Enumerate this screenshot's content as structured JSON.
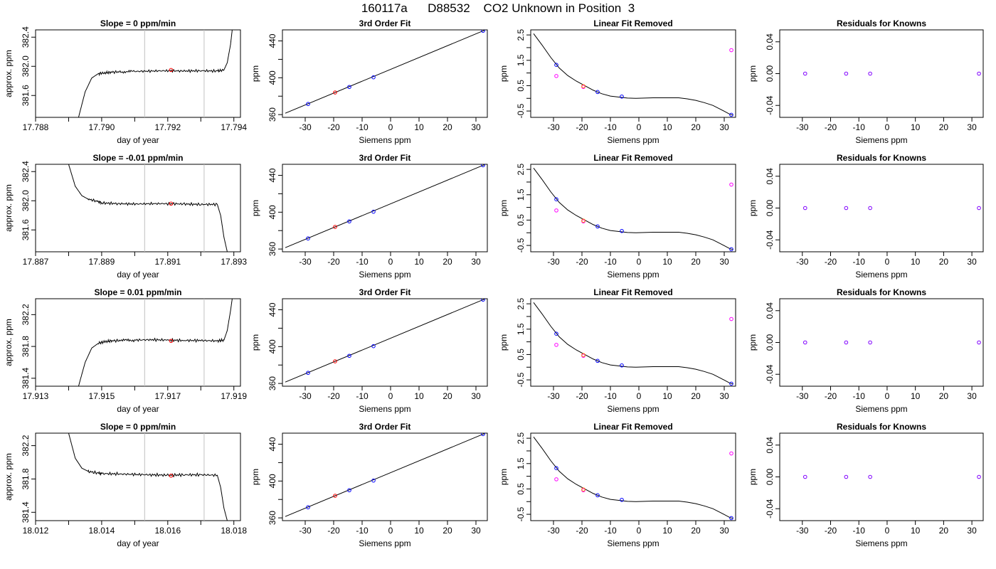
{
  "page": {
    "title": "160117a      D88532    CO2 Unknown in Position  3"
  },
  "chart_data": [
    {
      "type": "line",
      "row": 0,
      "title": "Slope =  0  ppm/min",
      "xlabel": "day of year",
      "ylabel": "approx. ppm",
      "xlim": [
        17.788,
        17.7942
      ],
      "ylim": [
        381.3,
        382.5
      ],
      "xticks": [
        "17.788",
        "17.790",
        "17.792",
        "17.794"
      ],
      "yticks": [
        "381.6",
        "382.0",
        "382.4"
      ],
      "vlines": [
        17.7913,
        17.7931
      ],
      "series": [
        {
          "x": [
            17.7893,
            17.7895,
            17.7897,
            17.7899,
            17.7901,
            17.7903,
            17.7906,
            17.791,
            17.7915,
            17.792,
            17.7925,
            17.793,
            17.7935,
            17.7937,
            17.7938,
            17.7939,
            17.79395
          ],
          "y": [
            381.3,
            381.65,
            381.84,
            381.9,
            381.91,
            381.92,
            381.925,
            381.93,
            381.935,
            381.94,
            381.935,
            381.94,
            381.935,
            381.95,
            382.05,
            382.3,
            382.5
          ]
        }
      ],
      "marker": {
        "x": 17.7921,
        "y": 381.95
      }
    },
    {
      "type": "line",
      "row": 1,
      "title": "Slope =  -0.01  ppm/min",
      "xlabel": "day of year",
      "ylabel": "approx. ppm",
      "xlim": [
        17.887,
        17.8932
      ],
      "ylim": [
        381.3,
        382.5
      ],
      "xticks": [
        "17.887",
        "17.889",
        "17.891",
        "17.893"
      ],
      "yticks": [
        "381.6",
        "382.0",
        "382.4"
      ],
      "vlines": [
        17.8903,
        17.8921
      ],
      "series": [
        {
          "x": [
            17.888,
            17.8881,
            17.8882,
            17.8884,
            17.8886,
            17.8889,
            17.889,
            17.8895,
            17.89,
            17.8905,
            17.891,
            17.8915,
            17.892,
            17.8925,
            17.8926,
            17.8927,
            17.8928
          ],
          "y": [
            382.5,
            382.35,
            382.2,
            382.07,
            382.02,
            381.99,
            381.97,
            381.96,
            381.955,
            381.96,
            381.96,
            381.955,
            381.95,
            381.95,
            381.8,
            381.5,
            381.3
          ]
        }
      ],
      "marker": {
        "x": 17.8911,
        "y": 381.96
      }
    },
    {
      "type": "line",
      "row": 2,
      "title": "Slope =  0.01  ppm/min",
      "xlabel": "day of year",
      "ylabel": "approx. ppm",
      "xlim": [
        17.913,
        17.9192
      ],
      "ylim": [
        381.3,
        382.4
      ],
      "xticks": [
        "17.913",
        "17.915",
        "17.917",
        "17.919"
      ],
      "yticks": [
        "381.4",
        "381.8",
        "382.2"
      ],
      "vlines": [
        17.9163,
        17.9181
      ],
      "series": [
        {
          "x": [
            17.9143,
            17.9145,
            17.9147,
            17.9149,
            17.9151,
            17.9153,
            17.9156,
            17.916,
            17.9165,
            17.917,
            17.9175,
            17.918,
            17.9185,
            17.9187,
            17.9188,
            17.9189,
            17.91895
          ],
          "y": [
            381.3,
            381.6,
            381.78,
            381.84,
            381.86,
            381.87,
            381.875,
            381.88,
            381.885,
            381.88,
            381.875,
            381.875,
            381.87,
            381.88,
            382.0,
            382.25,
            382.4
          ]
        }
      ],
      "marker": {
        "x": 17.9171,
        "y": 381.87
      }
    },
    {
      "type": "line",
      "row": 3,
      "title": "Slope =  0  ppm/min",
      "xlabel": "day of year",
      "ylabel": "approx. ppm",
      "xlim": [
        18.012,
        18.0182
      ],
      "ylim": [
        381.3,
        382.35
      ],
      "xticks": [
        "18.012",
        "18.014",
        "18.016",
        "18.018"
      ],
      "yticks": [
        "381.4",
        "381.8",
        "382.2"
      ],
      "vlines": [
        18.0153,
        18.0171
      ],
      "series": [
        {
          "x": [
            18.013,
            18.0131,
            18.0132,
            18.0134,
            18.0136,
            18.0139,
            18.014,
            18.0145,
            18.015,
            18.0155,
            18.016,
            18.0165,
            18.017,
            18.0175,
            18.0176,
            18.0177,
            18.0178
          ],
          "y": [
            382.35,
            382.2,
            382.05,
            381.93,
            381.89,
            381.87,
            381.865,
            381.86,
            381.855,
            381.85,
            381.845,
            381.85,
            381.85,
            381.845,
            381.7,
            381.45,
            381.3
          ]
        }
      ],
      "marker": {
        "x": 18.0161,
        "y": 381.84
      }
    },
    {
      "type": "scatter",
      "row": 0,
      "title": "3rd Order Fit",
      "xlabel": "Siemens ppm",
      "ylabel": "ppm",
      "xlim": [
        -38,
        34
      ],
      "ylim": [
        357,
        452
      ],
      "xticks": [
        "-30",
        "-20",
        "-10",
        "0",
        "10",
        "20",
        "30"
      ],
      "yticks": [
        "360",
        "400",
        "440"
      ],
      "fit": {
        "x": [
          -37,
          33
        ],
        "y": [
          361.5,
          451.5
        ]
      },
      "knowns": {
        "x": [
          -29,
          -14.5,
          -6,
          32.5
        ],
        "y": [
          371.5,
          390,
          400.5,
          451
        ]
      },
      "unknown": {
        "x": -19.5,
        "y": 384
      }
    },
    {
      "type": "scatter",
      "row": 1,
      "title": "3rd Order Fit",
      "xlabel": "Siemens ppm",
      "ylabel": "ppm",
      "xlim": [
        -38,
        34
      ],
      "ylim": [
        357,
        452
      ],
      "xticks": [
        "-30",
        "-20",
        "-10",
        "0",
        "10",
        "20",
        "30"
      ],
      "yticks": [
        "360",
        "400",
        "440"
      ],
      "fit": {
        "x": [
          -37,
          33
        ],
        "y": [
          361.5,
          451.5
        ]
      },
      "knowns": {
        "x": [
          -29,
          -14.5,
          -6,
          32.5
        ],
        "y": [
          371.5,
          390,
          400.5,
          451
        ]
      },
      "unknown": {
        "x": -19.5,
        "y": 384
      }
    },
    {
      "type": "scatter",
      "row": 2,
      "title": "3rd Order Fit",
      "xlabel": "Siemens ppm",
      "ylabel": "ppm",
      "xlim": [
        -38,
        34
      ],
      "ylim": [
        357,
        452
      ],
      "xticks": [
        "-30",
        "-20",
        "-10",
        "0",
        "10",
        "20",
        "30"
      ],
      "yticks": [
        "360",
        "400",
        "440"
      ],
      "fit": {
        "x": [
          -37,
          33
        ],
        "y": [
          361.5,
          451.5
        ]
      },
      "knowns": {
        "x": [
          -29,
          -14.5,
          -6,
          32.5
        ],
        "y": [
          371.5,
          390,
          400.5,
          451
        ]
      },
      "unknown": {
        "x": -19.5,
        "y": 384
      }
    },
    {
      "type": "scatter",
      "row": 3,
      "title": "3rd Order Fit",
      "xlabel": "Siemens ppm",
      "ylabel": "ppm",
      "xlim": [
        -38,
        34
      ],
      "ylim": [
        357,
        452
      ],
      "xticks": [
        "-30",
        "-20",
        "-10",
        "0",
        "10",
        "20",
        "30"
      ],
      "yticks": [
        "360",
        "400",
        "440"
      ],
      "fit": {
        "x": [
          -37,
          33
        ],
        "y": [
          361.5,
          451.5
        ]
      },
      "knowns": {
        "x": [
          -29,
          -14.5,
          -6,
          32.5
        ],
        "y": [
          371.5,
          390,
          400.5,
          451
        ]
      },
      "unknown": {
        "x": -19.5,
        "y": 384
      }
    },
    {
      "type": "scatter",
      "row": 0,
      "title": "Linear Fit Removed",
      "xlabel": "Siemens ppm",
      "ylabel": "ppm",
      "xlim": [
        -38,
        34
      ],
      "ylim": [
        -0.75,
        2.7
      ],
      "xticks": [
        "-30",
        "-20",
        "-10",
        "0",
        "10",
        "20",
        "30"
      ],
      "yticks": [
        "-0.5",
        "0.5",
        "1.5",
        "2.5"
      ],
      "curve": {
        "x": [
          -37,
          -34,
          -31,
          -28,
          -25,
          -22,
          -19,
          -16,
          -13,
          -10,
          -7,
          -4,
          -1,
          2,
          5,
          8,
          11,
          14,
          17,
          20,
          23,
          26,
          29,
          32,
          33
        ],
        "y": [
          2.55,
          2.1,
          1.62,
          1.2,
          0.9,
          0.68,
          0.5,
          0.32,
          0.18,
          0.09,
          0.05,
          0.01,
          0.0,
          0.01,
          0.02,
          0.02,
          0.02,
          0.02,
          -0.02,
          -0.08,
          -0.17,
          -0.28,
          -0.45,
          -0.63,
          -0.66
        ]
      },
      "knowns": {
        "x": [
          -29,
          -14.5,
          -6,
          32.5
        ],
        "y": [
          1.32,
          0.25,
          0.07,
          -0.65
        ]
      },
      "unknown": {
        "x": -19.5,
        "y": 0.48
      },
      "magenta": {
        "x": [
          -29,
          -19.5,
          32.5
        ],
        "y": [
          0.88,
          0.45,
          1.9
        ]
      }
    },
    {
      "type": "scatter",
      "row": 1,
      "title": "Linear Fit Removed",
      "xlabel": "Siemens ppm",
      "ylabel": "ppm",
      "xlim": [
        -38,
        34
      ],
      "ylim": [
        -0.75,
        2.7
      ],
      "xticks": [
        "-30",
        "-20",
        "-10",
        "0",
        "10",
        "20",
        "30"
      ],
      "yticks": [
        "-0.5",
        "0.5",
        "1.5",
        "2.5"
      ],
      "curve": {
        "x": [
          -37,
          -34,
          -31,
          -28,
          -25,
          -22,
          -19,
          -16,
          -13,
          -10,
          -7,
          -4,
          -1,
          2,
          5,
          8,
          11,
          14,
          17,
          20,
          23,
          26,
          29,
          32,
          33
        ],
        "y": [
          2.55,
          2.1,
          1.62,
          1.2,
          0.9,
          0.68,
          0.5,
          0.32,
          0.18,
          0.09,
          0.05,
          0.01,
          0.0,
          0.01,
          0.02,
          0.02,
          0.02,
          0.02,
          -0.02,
          -0.08,
          -0.17,
          -0.28,
          -0.45,
          -0.63,
          -0.66
        ]
      },
      "knowns": {
        "x": [
          -29,
          -14.5,
          -6,
          32.5
        ],
        "y": [
          1.32,
          0.25,
          0.07,
          -0.65
        ]
      },
      "unknown": {
        "x": -19.5,
        "y": 0.48
      },
      "magenta": {
        "x": [
          -29,
          -19.5,
          32.5
        ],
        "y": [
          0.88,
          0.45,
          1.9
        ]
      }
    },
    {
      "type": "scatter",
      "row": 2,
      "title": "Linear Fit Removed",
      "xlabel": "Siemens ppm",
      "ylabel": "ppm",
      "xlim": [
        -38,
        34
      ],
      "ylim": [
        -0.75,
        2.7
      ],
      "xticks": [
        "-30",
        "-20",
        "-10",
        "0",
        "10",
        "20",
        "30"
      ],
      "yticks": [
        "-0.5",
        "0.5",
        "1.5",
        "2.5"
      ],
      "curve": {
        "x": [
          -37,
          -34,
          -31,
          -28,
          -25,
          -22,
          -19,
          -16,
          -13,
          -10,
          -7,
          -4,
          -1,
          2,
          5,
          8,
          11,
          14,
          17,
          20,
          23,
          26,
          29,
          32,
          33
        ],
        "y": [
          2.55,
          2.1,
          1.62,
          1.2,
          0.9,
          0.68,
          0.5,
          0.32,
          0.18,
          0.09,
          0.05,
          0.01,
          0.0,
          0.01,
          0.02,
          0.02,
          0.02,
          0.02,
          -0.02,
          -0.08,
          -0.17,
          -0.28,
          -0.45,
          -0.63,
          -0.66
        ]
      },
      "knowns": {
        "x": [
          -29,
          -14.5,
          -6,
          32.5
        ],
        "y": [
          1.32,
          0.25,
          0.07,
          -0.65
        ]
      },
      "unknown": {
        "x": -19.5,
        "y": 0.48
      },
      "magenta": {
        "x": [
          -29,
          -19.5,
          32.5
        ],
        "y": [
          0.88,
          0.45,
          1.9
        ]
      }
    },
    {
      "type": "scatter",
      "row": 3,
      "title": "Linear Fit Removed",
      "xlabel": "Siemens ppm",
      "ylabel": "ppm",
      "xlim": [
        -38,
        34
      ],
      "ylim": [
        -0.75,
        2.7
      ],
      "xticks": [
        "-30",
        "-20",
        "-10",
        "0",
        "10",
        "20",
        "30"
      ],
      "yticks": [
        "-0.5",
        "0.5",
        "1.5",
        "2.5"
      ],
      "curve": {
        "x": [
          -37,
          -34,
          -31,
          -28,
          -25,
          -22,
          -19,
          -16,
          -13,
          -10,
          -7,
          -4,
          -1,
          2,
          5,
          8,
          11,
          14,
          17,
          20,
          23,
          26,
          29,
          32,
          33
        ],
        "y": [
          2.55,
          2.1,
          1.62,
          1.2,
          0.9,
          0.68,
          0.5,
          0.32,
          0.18,
          0.09,
          0.05,
          0.01,
          0.0,
          0.01,
          0.02,
          0.02,
          0.02,
          0.02,
          -0.02,
          -0.08,
          -0.17,
          -0.28,
          -0.45,
          -0.63,
          -0.66
        ]
      },
      "knowns": {
        "x": [
          -29,
          -14.5,
          -6,
          32.5
        ],
        "y": [
          1.32,
          0.25,
          0.07,
          -0.65
        ]
      },
      "unknown": {
        "x": -19.5,
        "y": 0.48
      },
      "magenta": {
        "x": [
          -29,
          -19.5,
          32.5
        ],
        "y": [
          0.88,
          0.45,
          1.9
        ]
      }
    },
    {
      "type": "scatter",
      "row": 0,
      "title": "Residuals for Knowns",
      "xlabel": "Siemens ppm",
      "ylabel": "ppm",
      "xlim": [
        -38,
        34
      ],
      "ylim": [
        -0.055,
        0.055
      ],
      "xticks": [
        "-30",
        "-20",
        "-10",
        "0",
        "10",
        "20",
        "30"
      ],
      "yticks": [
        "-0.04",
        "0.00",
        "0.04"
      ],
      "residuals": {
        "x": [
          -29,
          -14.5,
          -6,
          32.5
        ],
        "y": [
          0,
          0,
          0,
          0
        ]
      }
    },
    {
      "type": "scatter",
      "row": 1,
      "title": "Residuals for Knowns",
      "xlabel": "Siemens ppm",
      "ylabel": "ppm",
      "xlim": [
        -38,
        34
      ],
      "ylim": [
        -0.055,
        0.055
      ],
      "xticks": [
        "-30",
        "-20",
        "-10",
        "0",
        "10",
        "20",
        "30"
      ],
      "yticks": [
        "-0.04",
        "0.00",
        "0.04"
      ],
      "residuals": {
        "x": [
          -29,
          -14.5,
          -6,
          32.5
        ],
        "y": [
          0,
          0,
          0,
          0
        ]
      }
    },
    {
      "type": "scatter",
      "row": 2,
      "title": "Residuals for Knowns",
      "xlabel": "Siemens ppm",
      "ylabel": "ppm",
      "xlim": [
        -38,
        34
      ],
      "ylim": [
        -0.055,
        0.055
      ],
      "xticks": [
        "-30",
        "-20",
        "-10",
        "0",
        "10",
        "20",
        "30"
      ],
      "yticks": [
        "-0.04",
        "0.00",
        "0.04"
      ],
      "residuals": {
        "x": [
          -29,
          -14.5,
          -6,
          32.5
        ],
        "y": [
          0,
          0,
          0,
          0
        ]
      }
    },
    {
      "type": "scatter",
      "row": 3,
      "title": "Residuals for Knowns",
      "xlabel": "Siemens ppm",
      "ylabel": "ppm",
      "xlim": [
        -38,
        34
      ],
      "ylim": [
        -0.055,
        0.055
      ],
      "xticks": [
        "-30",
        "-20",
        "-10",
        "0",
        "10",
        "20",
        "30"
      ],
      "yticks": [
        "-0.04",
        "0.00",
        "0.04"
      ],
      "residuals": {
        "x": [
          -29,
          -14.5,
          -6,
          32.5
        ],
        "y": [
          0,
          0,
          0,
          0
        ]
      }
    }
  ],
  "colors": {
    "trace": "#000000",
    "vline": "#c0c0c0",
    "known_point": "#0000ff",
    "unknown_point": "#ff0000",
    "magenta_point": "#ff00ff",
    "orange_point": "#ff8000",
    "residual_point": "#8000ff"
  }
}
